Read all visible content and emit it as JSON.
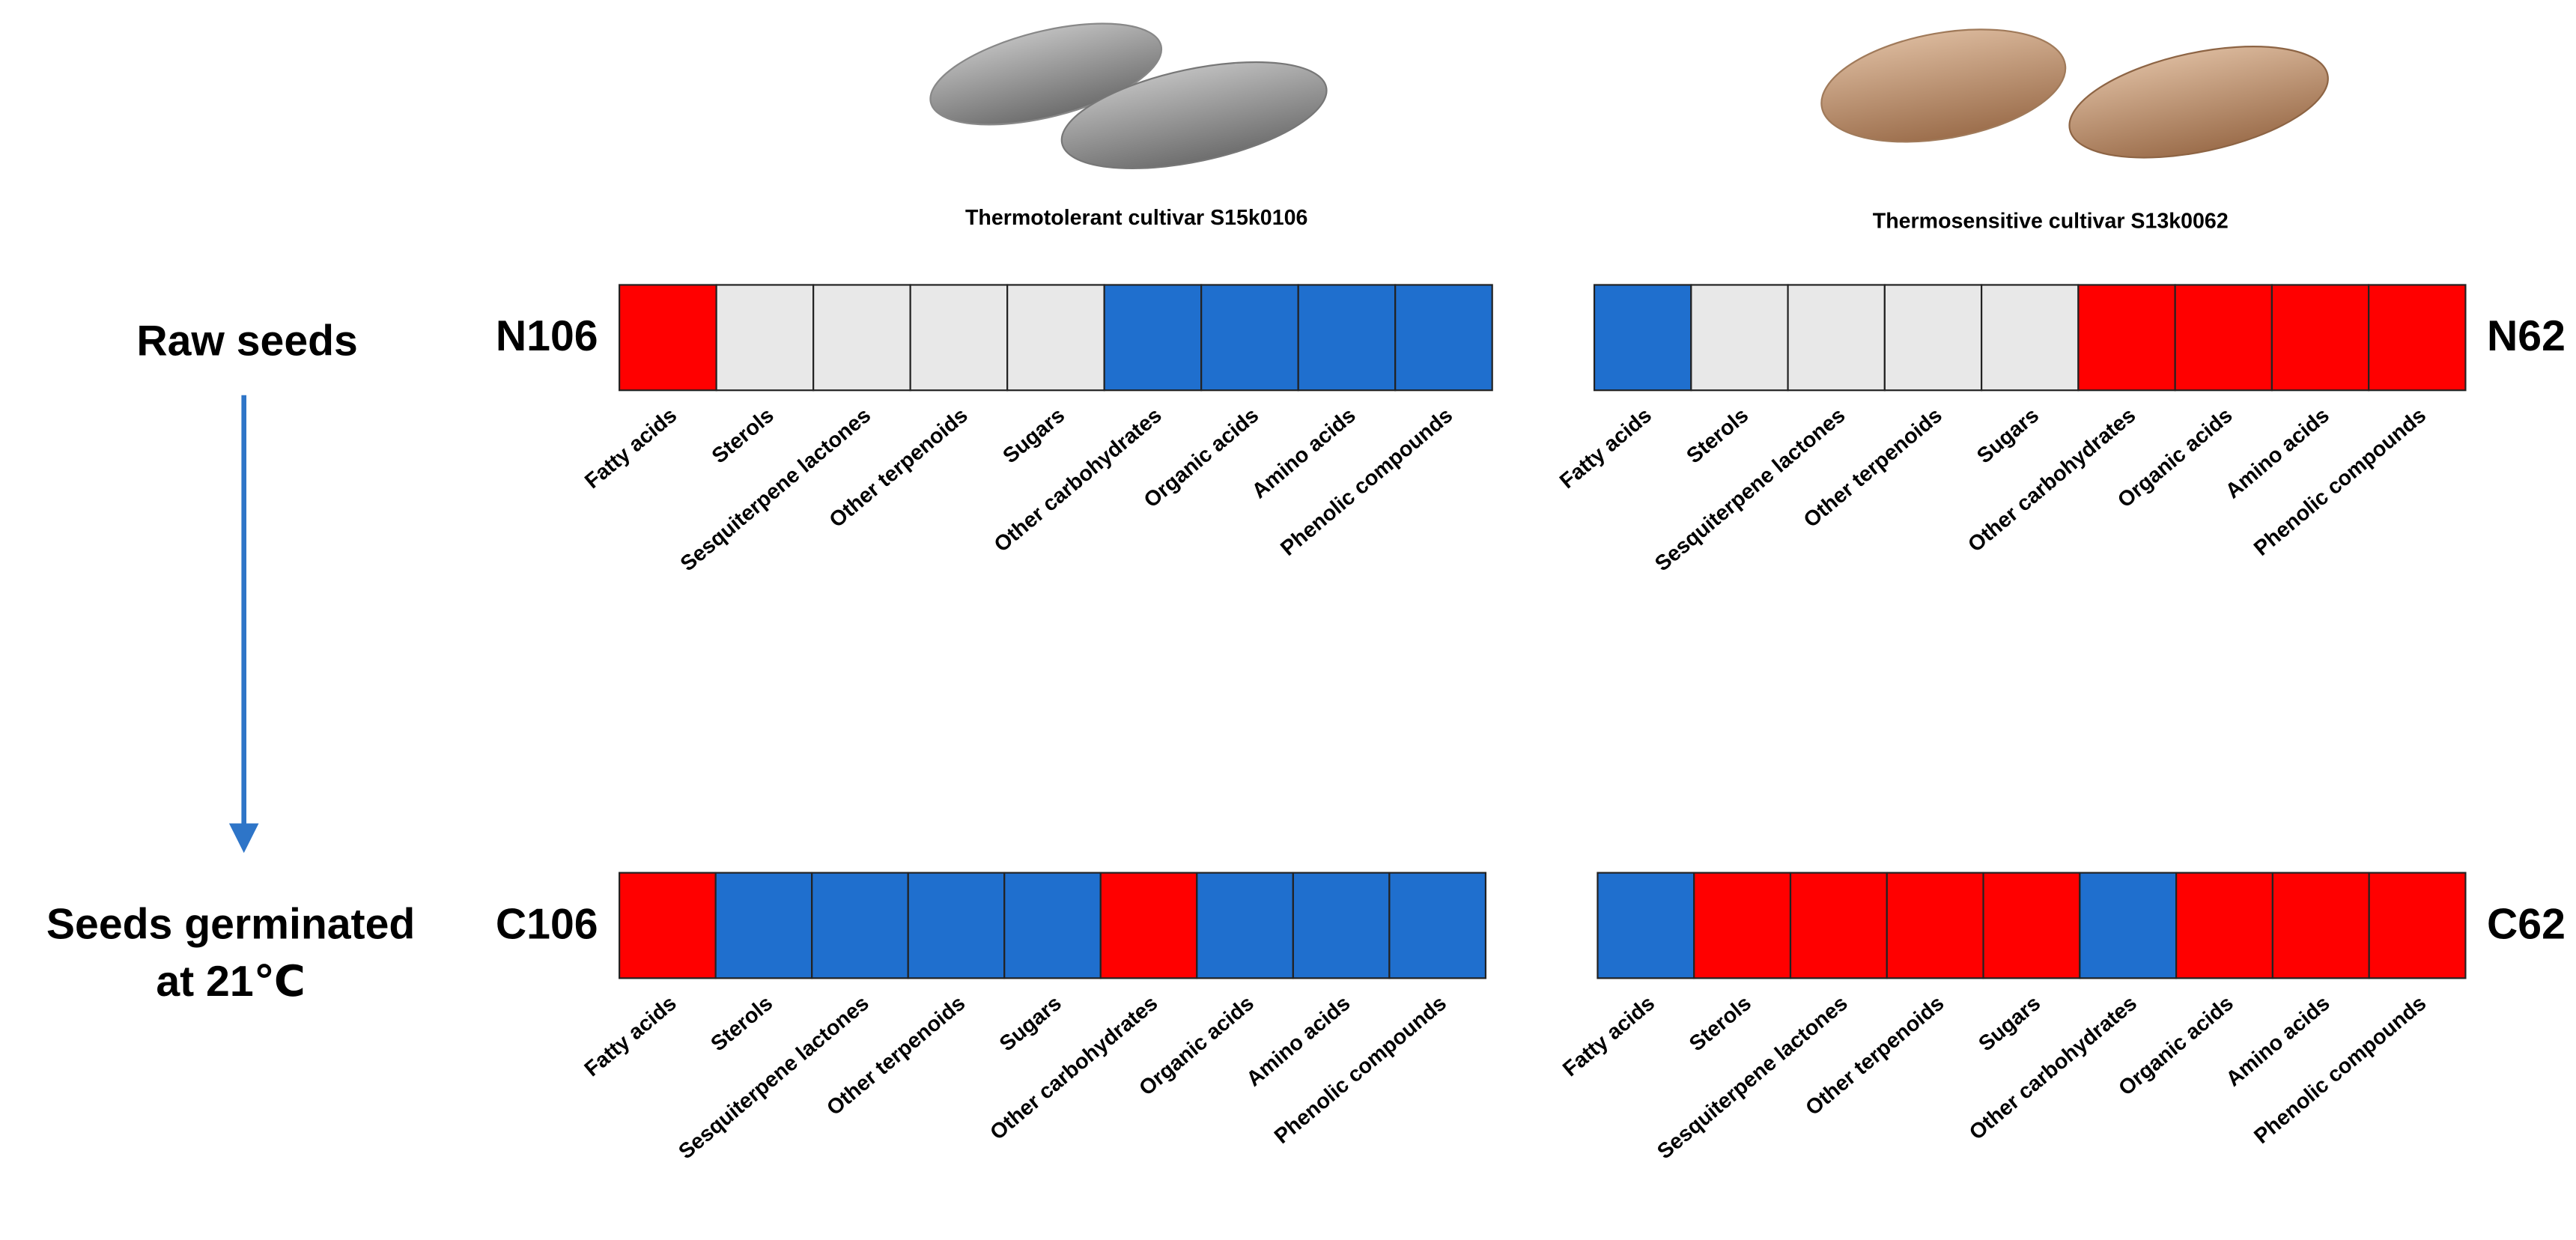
{
  "columns": [
    {
      "title": "Thermotolerant cultivar S15k0106"
    },
    {
      "title": "Thermosensitive cultivar S13k0062"
    }
  ],
  "rows": [
    {
      "label": [
        "Raw seeds"
      ]
    },
    {
      "label": [
        "Seeds germinated",
        "at 21℃"
      ]
    }
  ],
  "panels": [
    {
      "name": "N106",
      "cells": [
        {
          "label": "Fatty acids",
          "color": "#ff0000"
        },
        {
          "label": "Sterols",
          "color": "#e8e8e8"
        },
        {
          "label": "Sesquiterpene lactones",
          "color": "#e8e8e8"
        },
        {
          "label": "Other terpenoids",
          "color": "#e8e8e8"
        },
        {
          "label": "Sugars",
          "color": "#e8e8e8"
        },
        {
          "label": "Other carbohydrates",
          "color": "#1f6fce"
        },
        {
          "label": "Organic acids",
          "color": "#1f6fce"
        },
        {
          "label": "Amino acids",
          "color": "#1f6fce"
        },
        {
          "label": "Phenolic compounds",
          "color": "#1f6fce"
        }
      ]
    },
    {
      "name": "N62",
      "cells": [
        {
          "label": "Fatty acids",
          "color": "#1f6fce"
        },
        {
          "label": "Sterols",
          "color": "#e8e8e8"
        },
        {
          "label": "Sesquiterpene lactones",
          "color": "#e8e8e8"
        },
        {
          "label": "Other terpenoids",
          "color": "#e8e8e8"
        },
        {
          "label": "Sugars",
          "color": "#e8e8e8"
        },
        {
          "label": "Other carbohydrates",
          "color": "#ff0000"
        },
        {
          "label": "Organic acids",
          "color": "#ff0000"
        },
        {
          "label": "Amino acids",
          "color": "#ff0000"
        },
        {
          "label": "Phenolic compounds",
          "color": "#ff0000"
        }
      ]
    },
    {
      "name": "C106",
      "cells": [
        {
          "label": "Fatty acids",
          "color": "#ff0000"
        },
        {
          "label": "Sterols",
          "color": "#1f6fce"
        },
        {
          "label": "Sesquiterpene lactones",
          "color": "#1f6fce"
        },
        {
          "label": "Other terpenoids",
          "color": "#1f6fce"
        },
        {
          "label": "Sugars",
          "color": "#1f6fce"
        },
        {
          "label": "Other carbohydrates",
          "color": "#ff0000"
        },
        {
          "label": "Organic acids",
          "color": "#1f6fce"
        },
        {
          "label": "Amino acids",
          "color": "#1f6fce"
        },
        {
          "label": "Phenolic compounds",
          "color": "#1f6fce"
        }
      ]
    },
    {
      "name": "C62",
      "cells": [
        {
          "label": "Fatty acids",
          "color": "#1f6fce"
        },
        {
          "label": "Sterols",
          "color": "#ff0000"
        },
        {
          "label": "Sesquiterpene lactones",
          "color": "#ff0000"
        },
        {
          "label": "Other terpenoids",
          "color": "#ff0000"
        },
        {
          "label": "Sugars",
          "color": "#ff0000"
        },
        {
          "label": "Other carbohydrates",
          "color": "#1f6fce"
        },
        {
          "label": "Organic acids",
          "color": "#ff0000"
        },
        {
          "label": "Amino acids",
          "color": "#ff0000"
        },
        {
          "label": "Phenolic compounds",
          "color": "#ff0000"
        }
      ]
    }
  ]
}
